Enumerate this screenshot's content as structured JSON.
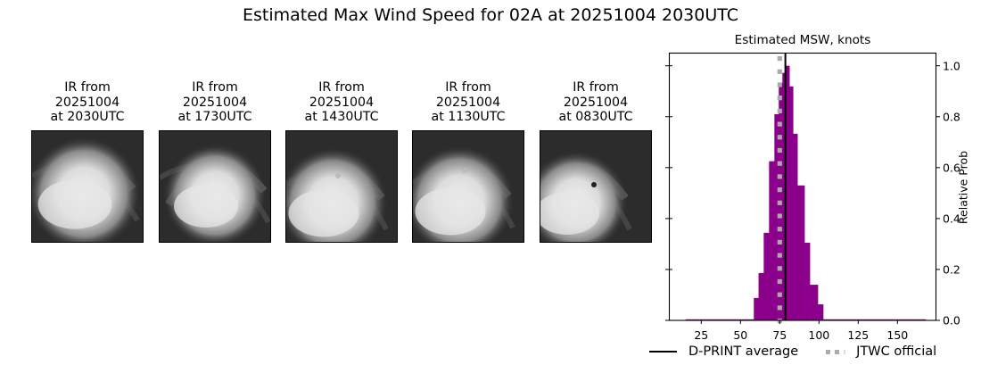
{
  "figure": {
    "suptitle": "Estimated Max Wind Speed for 02A at 20251004 2030UTC"
  },
  "ir_panels": [
    {
      "line1": "IR from",
      "line2": "20251004",
      "line3": "at 2030UTC",
      "icon": "satellite-ir-image"
    },
    {
      "line1": "IR from",
      "line2": "20251004",
      "line3": "at 1730UTC",
      "icon": "satellite-ir-image"
    },
    {
      "line1": "IR from",
      "line2": "20251004",
      "line3": "at 1430UTC",
      "icon": "satellite-ir-image"
    },
    {
      "line1": "IR from",
      "line2": "20251004",
      "line3": "at 1130UTC",
      "icon": "satellite-ir-image"
    },
    {
      "line1": "IR from",
      "line2": "20251004",
      "line3": "at 0830UTC",
      "icon": "satellite-ir-image"
    }
  ],
  "chart_data": {
    "type": "bar",
    "title": "Estimated MSW, knots",
    "xlabel": "",
    "ylabel": "Relative Prob",
    "xlim": [
      5,
      175
    ],
    "ylim": [
      0,
      1.05
    ],
    "xticks": [
      25,
      50,
      75,
      100,
      125,
      150
    ],
    "yticks": [
      0.0,
      0.2,
      0.4,
      0.6,
      0.8,
      1.0
    ],
    "ytick_labels": [
      "0.0",
      "0.2",
      "0.4",
      "0.6",
      "0.8",
      "1.0"
    ],
    "yaxis_side": "right",
    "bar_color": "#8b008b",
    "bins": [
      {
        "x0": 15,
        "x1": 58.5,
        "value": 0.003
      },
      {
        "x0": 58.5,
        "x1": 61.5,
        "value": 0.088
      },
      {
        "x0": 61.5,
        "x1": 64.8,
        "value": 0.186
      },
      {
        "x0": 64.8,
        "x1": 68.2,
        "value": 0.344
      },
      {
        "x0": 68.2,
        "x1": 71.6,
        "value": 0.625
      },
      {
        "x0": 71.6,
        "x1": 74.4,
        "value": 0.81
      },
      {
        "x0": 74.4,
        "x1": 76.7,
        "value": 0.933
      },
      {
        "x0": 76.7,
        "x1": 78.4,
        "value": 0.972
      },
      {
        "x0": 78.4,
        "x1": 81.2,
        "value": 1.0
      },
      {
        "x0": 81.2,
        "x1": 83.5,
        "value": 0.919
      },
      {
        "x0": 83.5,
        "x1": 86.3,
        "value": 0.733
      },
      {
        "x0": 86.3,
        "x1": 90.8,
        "value": 0.53
      },
      {
        "x0": 90.8,
        "x1": 94.2,
        "value": 0.305
      },
      {
        "x0": 94.2,
        "x1": 99.3,
        "value": 0.14
      },
      {
        "x0": 99.3,
        "x1": 102.7,
        "value": 0.063
      },
      {
        "x0": 102.7,
        "x1": 168,
        "value": 0.003
      }
    ],
    "lines": [
      {
        "name": "D-PRINT average",
        "x": 78.6,
        "style": "solid",
        "color": "#000000"
      },
      {
        "name": "JTWC official",
        "x": 75,
        "style": "dotted",
        "color": "#aaaaaa"
      }
    ],
    "legend": [
      "D-PRINT average",
      "JTWC official"
    ],
    "legend_position": "below",
    "grid": false
  }
}
